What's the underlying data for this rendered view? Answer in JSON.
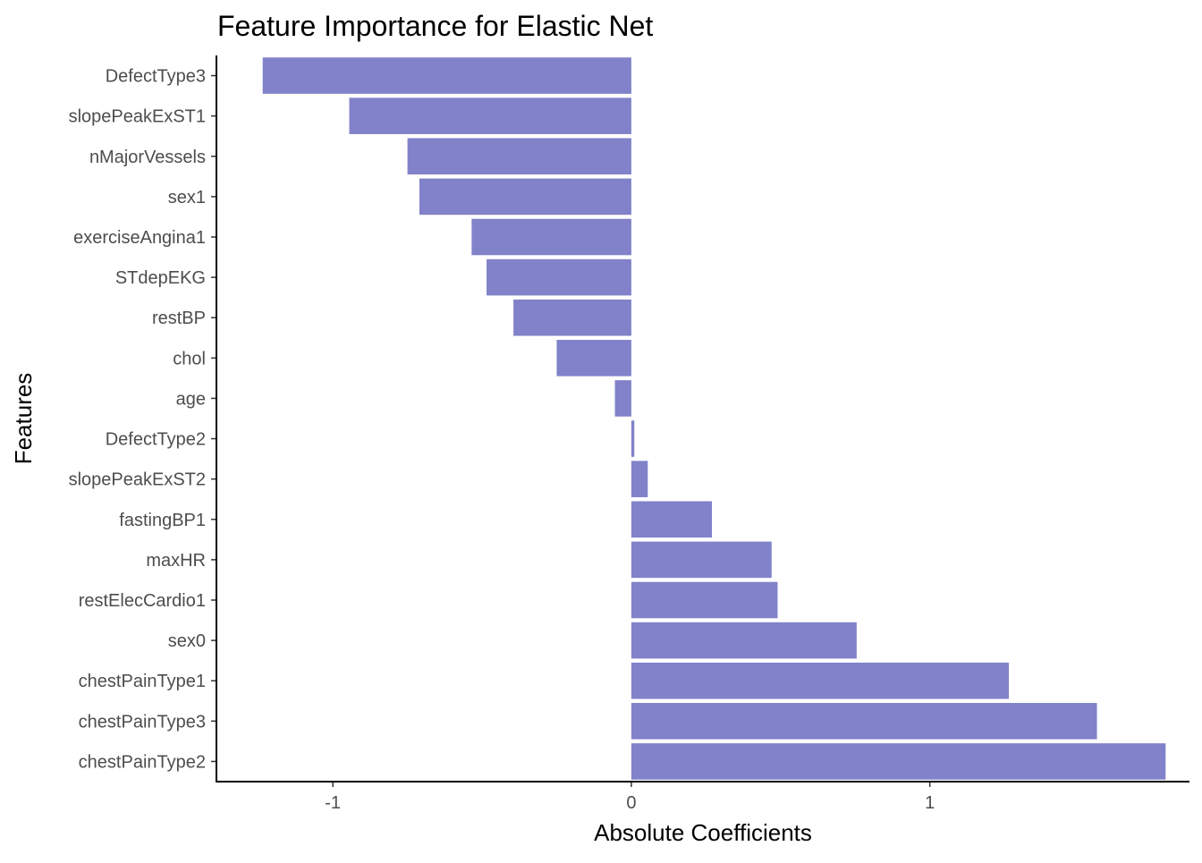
{
  "chart_data": {
    "type": "bar",
    "orientation": "horizontal",
    "title": "Feature Importance for Elastic Net",
    "xlabel": "Absolute Coefficients",
    "ylabel": "Features",
    "categories": [
      "DefectType3",
      "slopePeakExST1",
      "nMajorVessels",
      "sex1",
      "exerciseAngina1",
      "STdepEKG",
      "restBP",
      "chol",
      "age",
      "DefectType2",
      "slopePeakExST2",
      "fastingBP1",
      "maxHR",
      "restElecCardio1",
      "sex0",
      "chestPainType1",
      "chestPainType3",
      "chestPainType2"
    ],
    "values": [
      -1.235,
      -0.945,
      -0.75,
      -0.71,
      -0.535,
      -0.485,
      -0.395,
      -0.25,
      -0.055,
      0.01,
      0.055,
      0.27,
      0.47,
      0.49,
      0.755,
      1.265,
      1.56,
      1.79
    ],
    "xlim": [
      -1.39,
      1.87
    ],
    "xticks": [
      -1,
      0,
      1
    ],
    "xtick_labels": [
      "-1",
      "0",
      "1"
    ],
    "grid": false,
    "legend": "none",
    "bar_color": "#8182c9"
  }
}
